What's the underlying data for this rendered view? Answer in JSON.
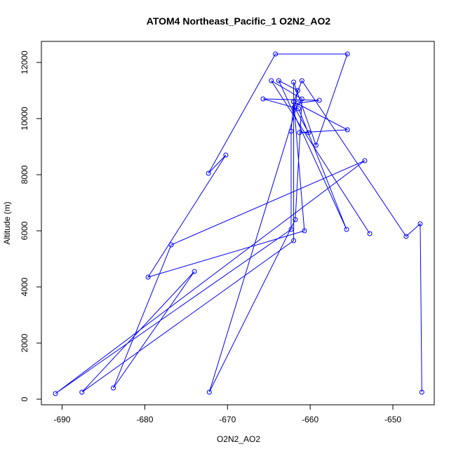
{
  "chart_data": {
    "type": "line",
    "title": "ATOM4 Northeast_Pacific_1 O2N2_AO2",
    "xlabel": "O2N2_AO2",
    "ylabel": "Altitude (m)",
    "xlim": [
      -692.5,
      -645.0
    ],
    "ylim": [
      -200,
      12750
    ],
    "xticks": [
      -690,
      -680,
      -670,
      -660,
      -650
    ],
    "yticks": [
      0,
      2000,
      4000,
      6000,
      8000,
      10000,
      12000
    ],
    "grid": false,
    "series": [
      {
        "color": "#0000ff",
        "points": [
          [
            -646.5,
            250
          ],
          [
            -646.7,
            6250
          ],
          [
            -648.4,
            5800
          ],
          [
            -661.0,
            11350
          ],
          [
            -662.0,
            10600
          ],
          [
            -662.3,
            9550
          ],
          [
            -662.3,
            6050
          ],
          [
            -690.8,
            200
          ],
          [
            -653.4,
            8500
          ],
          [
            -676.8,
            5500
          ],
          [
            -683.8,
            400
          ],
          [
            -674.0,
            4550
          ],
          [
            -687.6,
            250
          ],
          [
            -662.0,
            5650
          ],
          [
            -662.0,
            11300
          ],
          [
            -659.3,
            9050
          ],
          [
            -655.5,
            12300
          ],
          [
            -664.2,
            12300
          ],
          [
            -672.3,
            8050
          ],
          [
            -670.2,
            8700
          ],
          [
            -679.6,
            4350
          ],
          [
            -660.7,
            6000
          ],
          [
            -662.0,
            10600
          ],
          [
            -655.5,
            9600
          ],
          [
            -661.3,
            9500
          ],
          [
            -660.2,
            9500
          ],
          [
            -661.9,
            10400
          ],
          [
            -661.5,
            11000
          ],
          [
            -663.8,
            11350
          ],
          [
            -655.6,
            6050
          ],
          [
            -661.4,
            10350
          ],
          [
            -665.7,
            10700
          ],
          [
            -658.9,
            10650
          ],
          [
            -661.5,
            10550
          ],
          [
            -672.2,
            250
          ],
          [
            -661.8,
            6400
          ],
          [
            -661.0,
            10700
          ],
          [
            -664.7,
            11350
          ],
          [
            -652.8,
            5900
          ]
        ]
      }
    ]
  }
}
